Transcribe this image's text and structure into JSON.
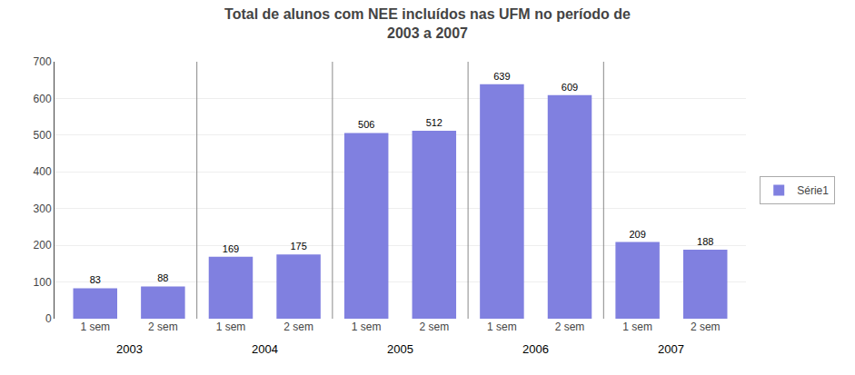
{
  "chart_data": {
    "type": "bar",
    "title": "Total de alunos com NEE incluídos nas UFM no período de\n2003 a 2007",
    "categories": [
      "1 sem",
      "2 sem",
      "1 sem",
      "2 sem",
      "1 sem",
      "2 sem",
      "1 sem",
      "2 sem",
      "1 sem",
      "2 sem"
    ],
    "annotations": [
      "2003",
      "2004",
      "2005",
      "2006",
      "2007"
    ],
    "series": [
      {
        "name": "Série1",
        "color": "#8080e0",
        "values": [
          83,
          88,
          169,
          175,
          506,
          512,
          639,
          609,
          209,
          188
        ]
      }
    ],
    "ylim": [
      0,
      700
    ],
    "yticks": [
      0,
      100,
      200,
      300,
      400,
      500,
      600,
      700
    ],
    "grid": true,
    "legend": "right",
    "data_labels": true
  }
}
